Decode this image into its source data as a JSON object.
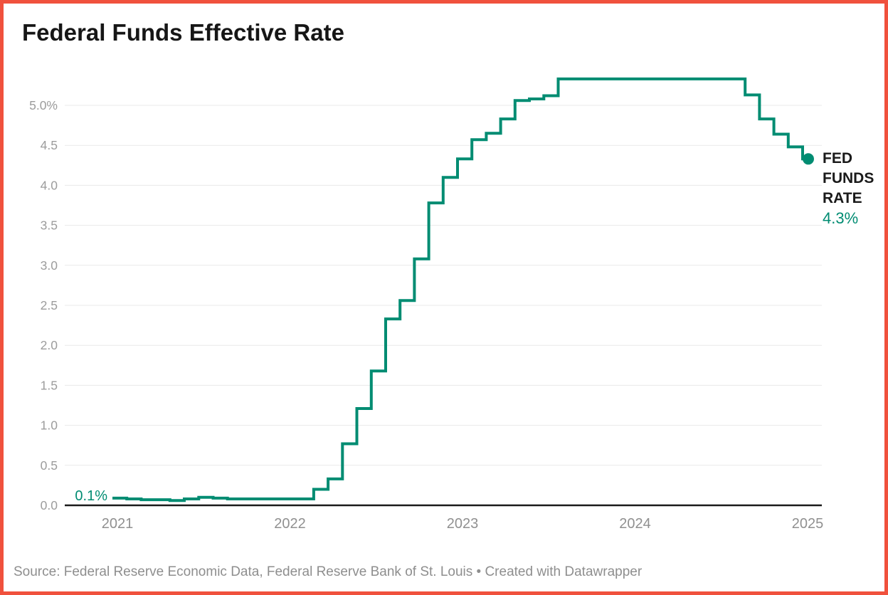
{
  "header": {
    "title": "Federal Funds Effective Rate"
  },
  "colors": {
    "accent_teal": "#008c72",
    "frame_border": "#f0513d",
    "gridline": "#e9e9e9",
    "axis_line": "#1a1a1a",
    "tick_text": "#9c9c9c"
  },
  "chart_data": {
    "type": "line",
    "line_style": "step-after",
    "title": "Federal Funds Effective Rate",
    "unit": "%",
    "line_color": "#008c72",
    "grid": "on",
    "ylim": [
      0,
      5.45
    ],
    "y_ticks": [
      0,
      0.5,
      1.0,
      1.5,
      2.0,
      2.5,
      3.0,
      3.5,
      4.0,
      4.5,
      5.0
    ],
    "y_tick_labels": [
      "0.0",
      "0.5",
      "1.0",
      "1.5",
      "2.0",
      "2.5",
      "3.0",
      "3.5",
      "4.0",
      "4.5",
      "5.0%"
    ],
    "x_ticks": [
      2021,
      2022,
      2023,
      2024,
      2025
    ],
    "x_tick_labels": [
      "2021",
      "2022",
      "2023",
      "2024",
      "2025"
    ],
    "start_label": "0.1%",
    "end_label": {
      "lines": [
        "FED",
        "FUNDS",
        "RATE"
      ],
      "value": "4.3%"
    },
    "series": [
      {
        "name": "FED FUNDS RATE",
        "points": [
          [
            "2021-01",
            0.09
          ],
          [
            "2021-02",
            0.08
          ],
          [
            "2021-03",
            0.07
          ],
          [
            "2021-04",
            0.07
          ],
          [
            "2021-05",
            0.06
          ],
          [
            "2021-06",
            0.08
          ],
          [
            "2021-07",
            0.1
          ],
          [
            "2021-08",
            0.09
          ],
          [
            "2021-09",
            0.08
          ],
          [
            "2021-10",
            0.08
          ],
          [
            "2021-11",
            0.08
          ],
          [
            "2021-12",
            0.08
          ],
          [
            "2022-01",
            0.08
          ],
          [
            "2022-02",
            0.08
          ],
          [
            "2022-03",
            0.2
          ],
          [
            "2022-04",
            0.33
          ],
          [
            "2022-05",
            0.77
          ],
          [
            "2022-06",
            1.21
          ],
          [
            "2022-07",
            1.68
          ],
          [
            "2022-08",
            2.33
          ],
          [
            "2022-09",
            2.56
          ],
          [
            "2022-10",
            3.08
          ],
          [
            "2022-11",
            3.78
          ],
          [
            "2022-12",
            4.1
          ],
          [
            "2023-01",
            4.33
          ],
          [
            "2023-02",
            4.57
          ],
          [
            "2023-03",
            4.65
          ],
          [
            "2023-04",
            4.83
          ],
          [
            "2023-05",
            5.06
          ],
          [
            "2023-06",
            5.08
          ],
          [
            "2023-07",
            5.12
          ],
          [
            "2023-08",
            5.33
          ],
          [
            "2023-09",
            5.33
          ],
          [
            "2023-10",
            5.33
          ],
          [
            "2023-11",
            5.33
          ],
          [
            "2023-12",
            5.33
          ],
          [
            "2024-01",
            5.33
          ],
          [
            "2024-02",
            5.33
          ],
          [
            "2024-03",
            5.33
          ],
          [
            "2024-04",
            5.33
          ],
          [
            "2024-05",
            5.33
          ],
          [
            "2024-06",
            5.33
          ],
          [
            "2024-07",
            5.33
          ],
          [
            "2024-08",
            5.33
          ],
          [
            "2024-09",
            5.13
          ],
          [
            "2024-10",
            4.83
          ],
          [
            "2024-11",
            4.64
          ],
          [
            "2024-12",
            4.48
          ],
          [
            "2025-01",
            4.33
          ]
        ]
      }
    ]
  },
  "footer": {
    "source": "Source: Federal Reserve Economic Data, Federal Reserve Bank of St. Louis • Created with Datawrapper"
  }
}
